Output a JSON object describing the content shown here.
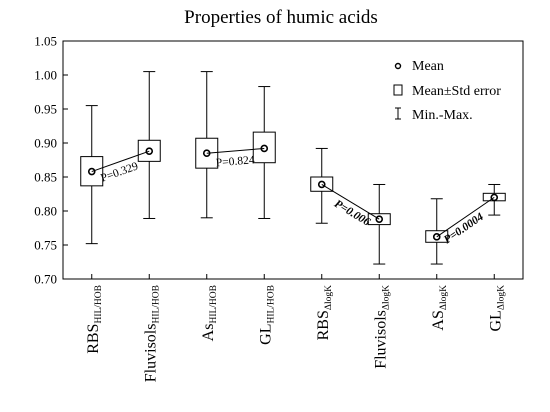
{
  "chart_data": {
    "type": "box",
    "title": "Properties of humic acids",
    "ylim": [
      0.7,
      1.05
    ],
    "yticks": [
      "0.70",
      "0.75",
      "0.80",
      "0.85",
      "0.90",
      "0.95",
      "1.00",
      "1.05"
    ],
    "categories": [
      {
        "main": "RBS",
        "sub": "HIL/HOB"
      },
      {
        "main": "Fluvisols",
        "sub": "HIL/HOB"
      },
      {
        "main": "As",
        "sub": "HIL/HOB"
      },
      {
        "main": "GL",
        "sub": "HIL/HOB"
      },
      {
        "main": "RBS",
        "sub": "ΔlogK"
      },
      {
        "main": "Fluvisols",
        "sub": "ΔlogK"
      },
      {
        "main": "AS",
        "sub": "ΔlogK"
      },
      {
        "main": "GL",
        "sub": "ΔlogK"
      }
    ],
    "mean": [
      0.858,
      0.888,
      0.885,
      0.892,
      0.839,
      0.788,
      0.762,
      0.82
    ],
    "se_low": [
      0.837,
      0.873,
      0.863,
      0.871,
      0.829,
      0.78,
      0.754,
      0.815
    ],
    "se_high": [
      0.88,
      0.904,
      0.907,
      0.916,
      0.85,
      0.796,
      0.771,
      0.826
    ],
    "min": [
      0.752,
      0.789,
      0.79,
      0.789,
      0.782,
      0.722,
      0.722,
      0.794
    ],
    "max": [
      0.955,
      1.005,
      1.005,
      0.983,
      0.892,
      0.839,
      0.818,
      0.839
    ],
    "pairs": [
      {
        "from": 0,
        "to": 1,
        "label": "P=0.329",
        "bold": false
      },
      {
        "from": 2,
        "to": 3,
        "label": "P=0.824",
        "bold": false
      },
      {
        "from": 4,
        "to": 5,
        "label": "P=0.006",
        "bold": true
      },
      {
        "from": 6,
        "to": 7,
        "label": "P=0.0004",
        "bold": true
      }
    ],
    "legend": {
      "placement": "top-right",
      "entries": [
        "Mean",
        "Mean±Std error",
        "Min.-Max."
      ]
    }
  }
}
